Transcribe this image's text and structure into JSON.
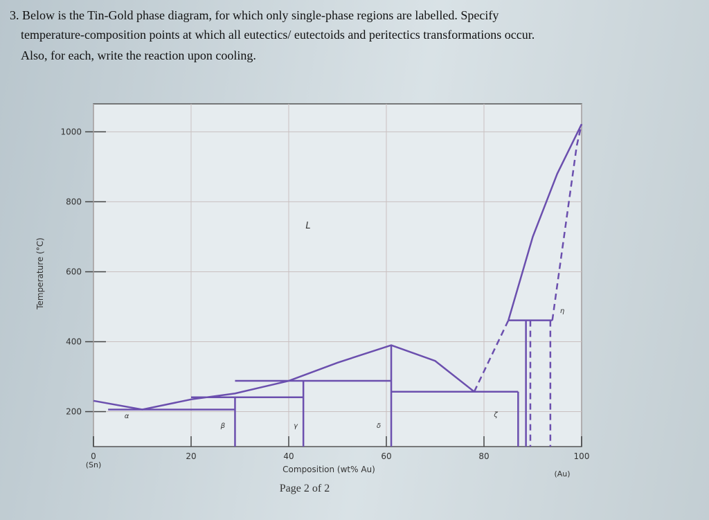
{
  "question": [
    "3. Below is the Tin-Gold phase diagram, for which only single-phase regions are labelled. Specify",
    "temperature-composition points at which all eutectics/ eutectoids and peritectics transformations occur.",
    "Also, for each, write the reaction upon cooling."
  ],
  "footer": "Page 2 of 2",
  "chart_data": {
    "type": "line",
    "xlabel": "Composition (wt% Au)",
    "ylabel": "Temperature (°C)",
    "annotations": [
      "(Sn)",
      "(Au)"
    ],
    "regions": [
      "L",
      "α",
      "β",
      "γ",
      "δ",
      "ζ",
      "η"
    ],
    "xlim": [
      0,
      100
    ],
    "xticks": [
      0,
      20,
      40,
      60,
      80,
      100
    ],
    "ylim": [
      100,
      1080
    ],
    "yticks": [
      200,
      400,
      600,
      800,
      1000
    ],
    "grid": true,
    "color": "#6b4fae",
    "series": [
      {
        "x": [
          0,
          10,
          20,
          29,
          40,
          50,
          61,
          70,
          78
        ],
        "values": [
          231,
          206,
          235,
          252,
          288,
          340,
          390,
          345,
          257
        ],
        "dashed": false
      },
      {
        "x": [
          78,
          85
        ],
        "values": [
          257,
          461
        ],
        "dashed": true
      },
      {
        "x": [
          85,
          90,
          95,
          100
        ],
        "values": [
          461,
          700,
          880,
          1022
        ],
        "dashed": false
      },
      {
        "x": [
          94,
          99,
          100
        ],
        "values": [
          461,
          960,
          1022
        ],
        "dashed": true
      },
      {
        "x": [
          3,
          29
        ],
        "values": [
          206,
          206
        ],
        "dashed": false
      },
      {
        "x": [
          20,
          43
        ],
        "values": [
          241,
          241
        ],
        "dashed": false
      },
      {
        "x": [
          29,
          61
        ],
        "values": [
          288,
          288
        ],
        "dashed": false
      },
      {
        "x": [
          61,
          87
        ],
        "values": [
          257,
          257
        ],
        "dashed": false
      },
      {
        "x": [
          85,
          94
        ],
        "values": [
          461,
          461
        ],
        "dashed": false
      },
      {
        "x": [
          29,
          29
        ],
        "values": [
          241,
          100
        ],
        "dashed": false
      },
      {
        "x": [
          43,
          43
        ],
        "values": [
          288,
          100
        ],
        "dashed": false
      },
      {
        "x": [
          61,
          61
        ],
        "values": [
          390,
          100
        ],
        "dashed": false
      },
      {
        "x": [
          87,
          87
        ],
        "values": [
          257,
          100
        ],
        "dashed": false
      },
      {
        "x": [
          88.6,
          88.6
        ],
        "values": [
          461,
          100
        ],
        "dashed": false
      },
      {
        "x": [
          89.5,
          89.5
        ],
        "values": [
          461,
          100
        ],
        "dashed": true
      },
      {
        "x": [
          93.6,
          93.6
        ],
        "values": [
          461,
          100
        ],
        "dashed": true
      }
    ]
  }
}
